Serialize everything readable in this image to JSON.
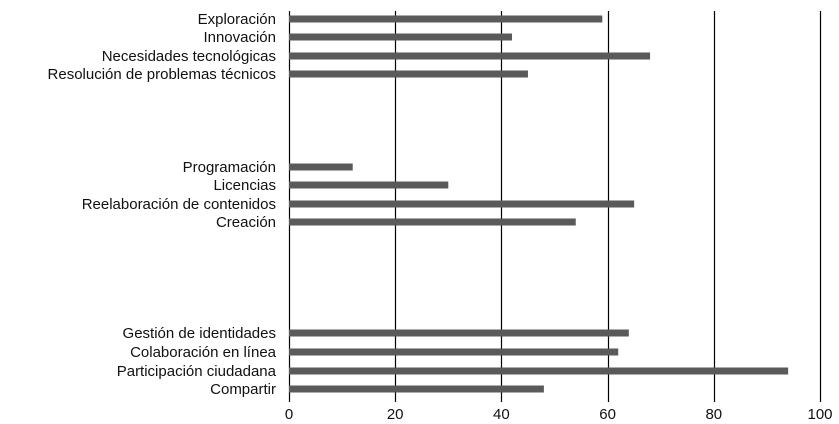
{
  "chart_data": {
    "type": "bar",
    "orientation": "horizontal",
    "title": "",
    "xlabel": "",
    "ylabel": "",
    "xlim": [
      0,
      100
    ],
    "xticks": [
      0,
      20,
      40,
      60,
      80,
      100
    ],
    "grid": "vertical",
    "groups": [
      {
        "categories": [
          "Exploración",
          "Innovación",
          "Necesidades tecnológicas",
          "Resolución de problemas técnicos"
        ],
        "values": [
          59,
          42,
          68,
          45
        ]
      },
      {
        "categories": [
          "Programación",
          "Licencias",
          "Reelaboración de contenidos",
          "Creación"
        ],
        "values": [
          12,
          30,
          65,
          54
        ]
      },
      {
        "categories": [
          "Gestión de identidades",
          "Colaboración en línea",
          "Participación ciudadana",
          "Compartir"
        ],
        "values": [
          64,
          62,
          94,
          48
        ]
      }
    ],
    "colors": {
      "bar": "#5a5a5a",
      "grid": "#000000",
      "text": "#111111"
    }
  }
}
